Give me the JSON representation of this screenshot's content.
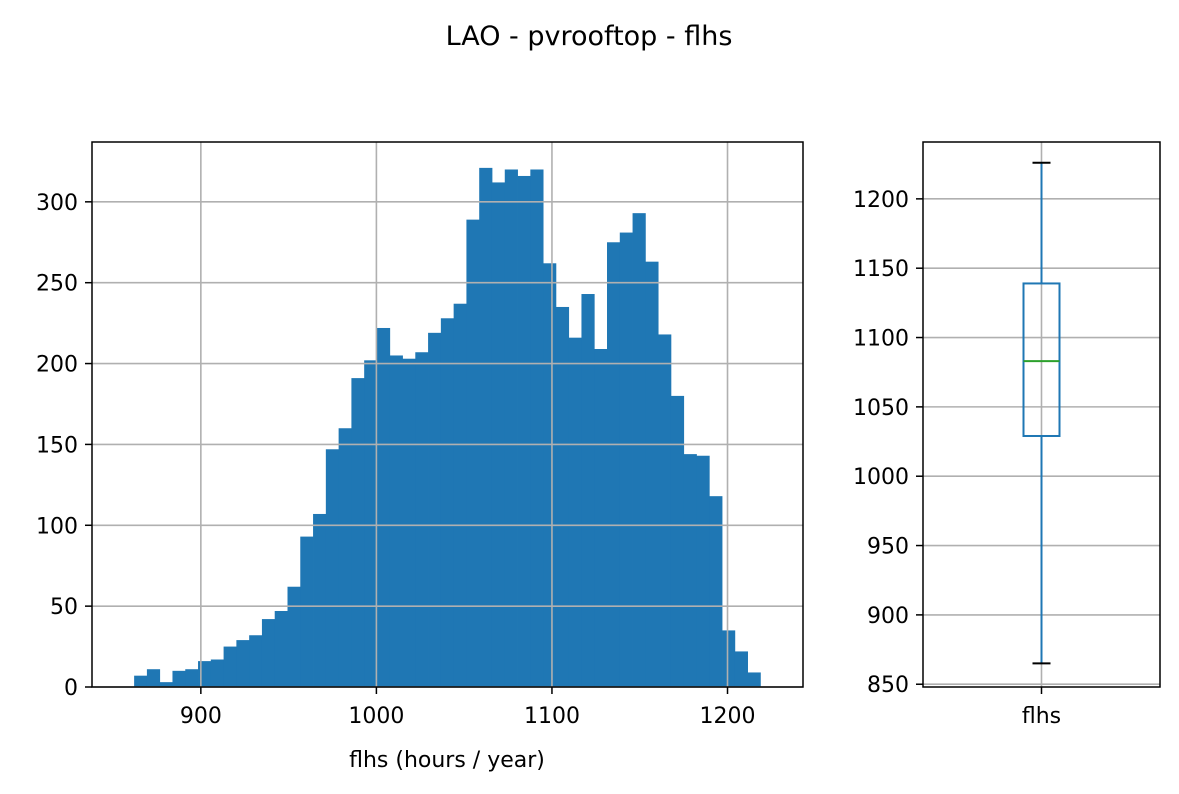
{
  "figure": {
    "title": "LAO - pvrooftop - flhs"
  },
  "chart_data": [
    {
      "type": "bar",
      "subtype": "histogram",
      "xlabel": "flhs (hours / year)",
      "ylabel": "",
      "xlim": [
        838,
        1243
      ],
      "ylim": [
        0,
        337
      ],
      "x_ticks": [
        900,
        1000,
        1100,
        1200
      ],
      "y_ticks": [
        0,
        50,
        100,
        150,
        200,
        250,
        300
      ],
      "grid": true,
      "color": "#1f77b4",
      "bin_start": 862,
      "bin_width": 7.28,
      "values": [
        7,
        11,
        3,
        10,
        11,
        16,
        17,
        25,
        29,
        32,
        42,
        47,
        62,
        93,
        107,
        147,
        160,
        191,
        202,
        222,
        205,
        203,
        207,
        219,
        228,
        237,
        289,
        321,
        312,
        320,
        316,
        320,
        262,
        235,
        216,
        243,
        209,
        275,
        281,
        293,
        263,
        218,
        180,
        144,
        143,
        118,
        35,
        22,
        9
      ]
    },
    {
      "type": "box",
      "category": "flhs",
      "ylim": [
        848,
        1241
      ],
      "y_ticks": [
        850,
        900,
        950,
        1000,
        1050,
        1100,
        1150,
        1200
      ],
      "grid": true,
      "whisker_low": 865,
      "q1": 1029,
      "median": 1083,
      "q3": 1139,
      "whisker_high": 1226,
      "box_color": "#1f77b4",
      "median_color": "#2ca02c",
      "cap_color": "#000000"
    }
  ]
}
